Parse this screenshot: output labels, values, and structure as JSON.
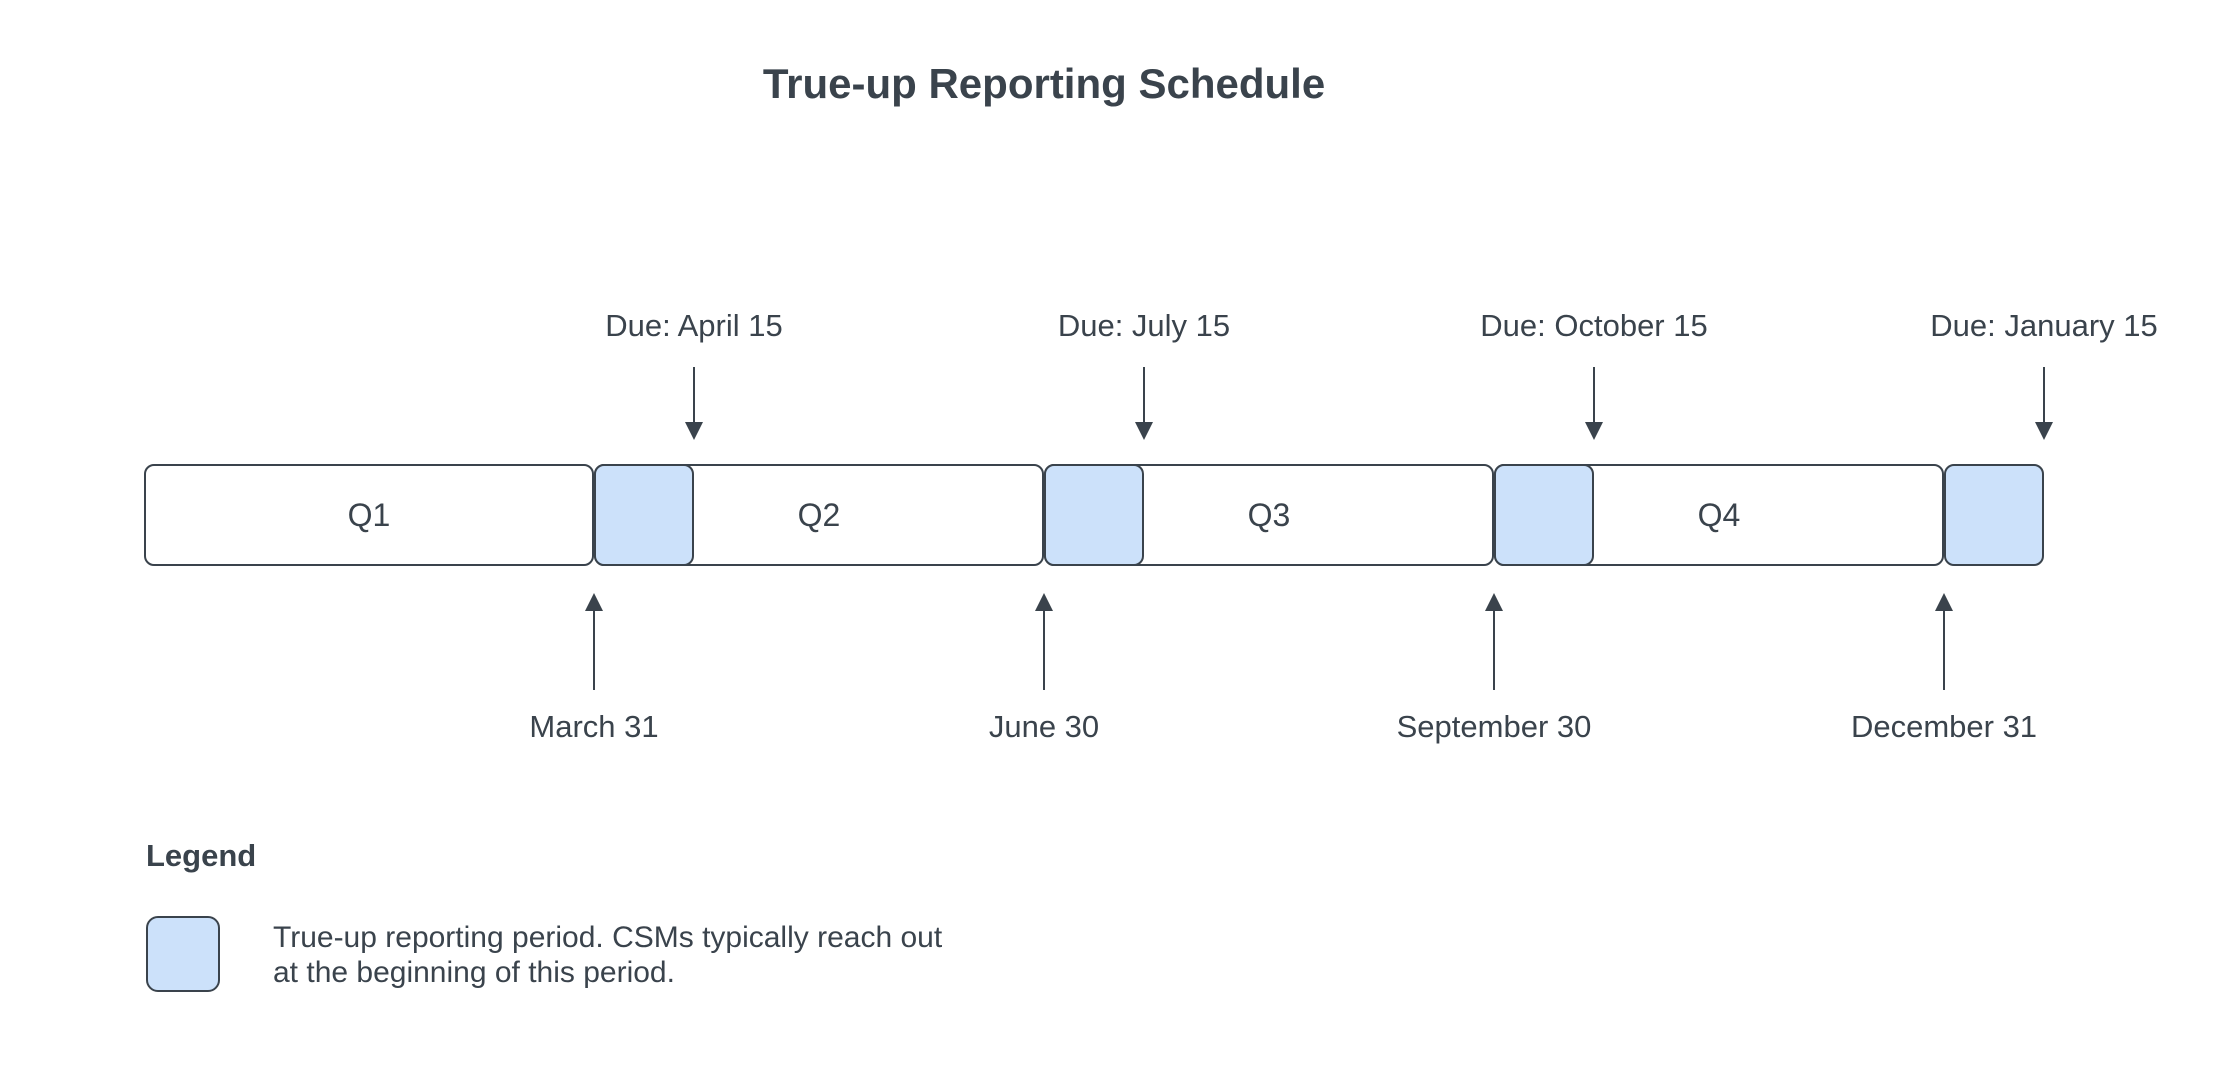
{
  "title": "True-up Reporting Schedule",
  "timeline": {
    "quarters": [
      {
        "label": "Q1"
      },
      {
        "label": "Q2"
      },
      {
        "label": "Q3"
      },
      {
        "label": "Q4"
      }
    ],
    "due_dates": [
      {
        "label": "Due: April 15"
      },
      {
        "label": "Due: July 15"
      },
      {
        "label": "Due: October 15"
      },
      {
        "label": "Due: January 15"
      }
    ],
    "quarter_end_dates": [
      {
        "label": "March 31"
      },
      {
        "label": "June 30"
      },
      {
        "label": "September 30"
      },
      {
        "label": "December 31"
      }
    ]
  },
  "legend": {
    "heading": "Legend",
    "description": "True-up reporting period. CSMs typically reach out at the beginning of this period."
  },
  "colors": {
    "ink": "#3A434C",
    "highlight": "#CCE1FA",
    "background": "#FFFFFF"
  }
}
